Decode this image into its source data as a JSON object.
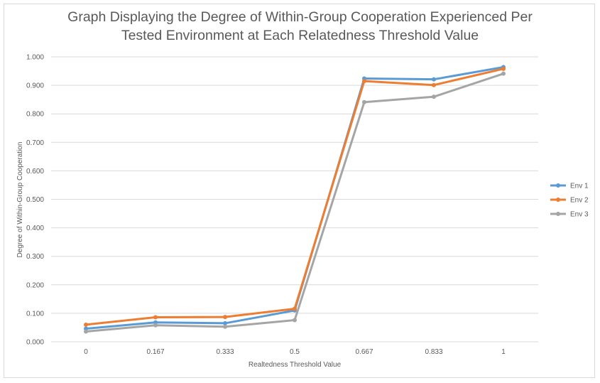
{
  "chart_data": {
    "type": "line",
    "title": "Graph Displaying the Degree of Within-Group Cooperation Experienced Per\nTested Environment at Each Relatedness Threshold Value",
    "xlabel": "Realtedness Threshold Value",
    "ylabel": "Degree of Within-Group Cooperation",
    "categories": [
      "0",
      "0.167",
      "0.333",
      "0.5",
      "0.667",
      "0.833",
      "1"
    ],
    "ylim": [
      0,
      1.0
    ],
    "yticks": [
      "0.000",
      "0.100",
      "0.200",
      "0.300",
      "0.400",
      "0.500",
      "0.600",
      "0.700",
      "0.800",
      "0.900",
      "1.000"
    ],
    "grid": true,
    "legend_position": "right",
    "series": [
      {
        "name": "Env 1",
        "color": "#5b9bd5",
        "values": [
          0.046,
          0.068,
          0.065,
          0.11,
          0.924,
          0.921,
          0.964
        ]
      },
      {
        "name": "Env 2",
        "color": "#ed7d31",
        "values": [
          0.06,
          0.086,
          0.087,
          0.116,
          0.915,
          0.901,
          0.958
        ]
      },
      {
        "name": "Env 3",
        "color": "#a5a5a5",
        "values": [
          0.036,
          0.058,
          0.053,
          0.076,
          0.841,
          0.86,
          0.941
        ]
      }
    ]
  }
}
